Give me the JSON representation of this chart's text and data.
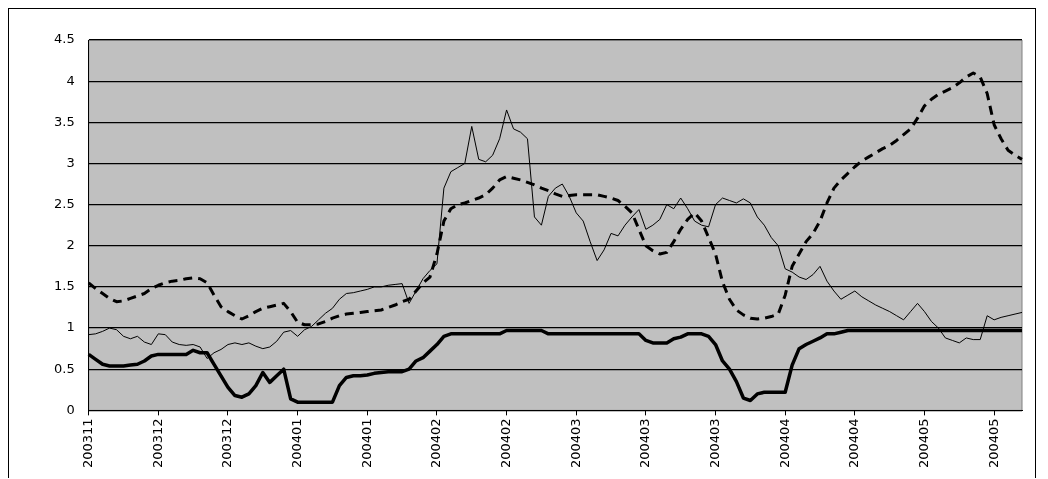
{
  "chart_data": {
    "type": "line",
    "categories": [
      "200311",
      null,
      null,
      null,
      null,
      null,
      null,
      null,
      null,
      null,
      "200312",
      null,
      null,
      null,
      null,
      null,
      null,
      null,
      null,
      null,
      "200312",
      null,
      null,
      null,
      null,
      null,
      null,
      null,
      null,
      null,
      "200401",
      null,
      null,
      null,
      null,
      null,
      null,
      null,
      null,
      null,
      "200401",
      null,
      null,
      null,
      null,
      null,
      null,
      null,
      null,
      null,
      "200402",
      null,
      null,
      null,
      null,
      null,
      null,
      null,
      null,
      null,
      "200402",
      null,
      null,
      null,
      null,
      null,
      null,
      null,
      null,
      null,
      "200403",
      null,
      null,
      null,
      null,
      null,
      null,
      null,
      null,
      null,
      "200403",
      null,
      null,
      null,
      null,
      null,
      null,
      null,
      null,
      null,
      "200403",
      null,
      null,
      null,
      null,
      null,
      null,
      null,
      null,
      null,
      "200404",
      null,
      null,
      null,
      null,
      null,
      null,
      null,
      null,
      null,
      "200404",
      null,
      null,
      null,
      null,
      null,
      null,
      null,
      null,
      null,
      "200405",
      null,
      null,
      null,
      null,
      null,
      null,
      null,
      null,
      null,
      "200405",
      null,
      null,
      null,
      null
    ],
    "series": [
      {
        "color": "#000000",
        "line_style": "solid",
        "values": [
          0.92,
          0.93,
          0.96,
          1.0,
          0.98,
          0.9,
          0.87,
          0.9,
          0.83,
          0.8,
          0.93,
          0.92,
          0.83,
          0.8,
          0.79,
          0.8,
          0.77,
          0.63,
          0.7,
          0.74,
          0.8,
          0.82,
          0.8,
          0.82,
          0.78,
          0.75,
          0.77,
          0.84,
          0.95,
          0.97,
          0.9,
          0.98,
          1.02,
          1.1,
          1.18,
          1.24,
          1.35,
          1.42,
          1.43,
          1.45,
          1.47,
          1.5,
          1.5,
          1.52,
          1.53,
          1.54,
          1.3,
          1.45,
          1.6,
          1.7,
          1.78,
          2.7,
          2.9,
          2.95,
          3.0,
          3.45,
          3.05,
          3.02,
          3.1,
          3.3,
          3.65,
          3.42,
          3.38,
          3.3,
          2.35,
          2.25,
          2.6,
          2.7,
          2.75,
          2.6,
          2.4,
          2.3,
          2.05,
          1.82,
          1.95,
          2.15,
          2.12,
          2.25,
          2.35,
          2.44,
          2.2,
          2.25,
          2.32,
          2.5,
          2.45,
          2.58,
          2.45,
          2.3,
          2.25,
          2.23,
          2.5,
          2.58,
          2.55,
          2.52,
          2.57,
          2.52,
          2.35,
          2.25,
          2.1,
          2.0,
          1.72,
          1.68,
          1.62,
          1.59,
          1.65,
          1.75,
          1.57,
          1.45,
          1.35,
          1.4,
          1.45,
          1.38,
          1.33,
          1.28,
          1.24,
          1.2,
          1.15,
          1.1,
          1.2,
          1.3,
          1.2,
          1.08,
          1.0,
          0.88,
          0.85,
          0.82,
          0.88,
          0.86,
          0.86,
          1.15,
          1.1,
          1.13,
          1.15,
          1.17,
          1.19
        ]
      },
      {
        "color": "#000000",
        "line_style": "dashed",
        "values": [
          1.55,
          1.48,
          1.42,
          1.36,
          1.32,
          1.33,
          1.36,
          1.39,
          1.42,
          1.48,
          1.52,
          1.55,
          1.57,
          1.58,
          1.6,
          1.61,
          1.6,
          1.55,
          1.4,
          1.26,
          1.2,
          1.15,
          1.11,
          1.15,
          1.2,
          1.24,
          1.26,
          1.28,
          1.3,
          1.2,
          1.07,
          1.04,
          1.04,
          1.05,
          1.08,
          1.12,
          1.15,
          1.17,
          1.18,
          1.19,
          1.2,
          1.21,
          1.22,
          1.25,
          1.28,
          1.32,
          1.35,
          1.45,
          1.55,
          1.62,
          1.9,
          2.3,
          2.45,
          2.5,
          2.52,
          2.55,
          2.58,
          2.62,
          2.7,
          2.8,
          2.84,
          2.82,
          2.8,
          2.77,
          2.74,
          2.7,
          2.67,
          2.63,
          2.6,
          2.61,
          2.62,
          2.62,
          2.62,
          2.62,
          2.6,
          2.58,
          2.55,
          2.48,
          2.4,
          2.2,
          2.0,
          1.94,
          1.9,
          1.92,
          2.05,
          2.2,
          2.32,
          2.4,
          2.3,
          2.1,
          1.9,
          1.56,
          1.35,
          1.22,
          1.16,
          1.12,
          1.11,
          1.12,
          1.14,
          1.17,
          1.4,
          1.75,
          1.9,
          2.05,
          2.15,
          2.3,
          2.52,
          2.7,
          2.8,
          2.88,
          2.96,
          3.03,
          3.08,
          3.13,
          3.18,
          3.22,
          3.28,
          3.35,
          3.42,
          3.55,
          3.7,
          3.78,
          3.84,
          3.88,
          3.92,
          3.98,
          4.05,
          4.1,
          4.05,
          3.85,
          3.47,
          3.3,
          3.16,
          3.1,
          3.05
        ]
      },
      {
        "color": "#000000",
        "line_style": "solid",
        "values": [
          0.68,
          0.62,
          0.56,
          0.54,
          0.54,
          0.54,
          0.55,
          0.56,
          0.6,
          0.66,
          0.68,
          0.68,
          0.68,
          0.68,
          0.68,
          0.73,
          0.7,
          0.7,
          0.56,
          0.42,
          0.28,
          0.18,
          0.16,
          0.2,
          0.3,
          0.46,
          0.34,
          0.42,
          0.5,
          0.14,
          0.1,
          0.1,
          0.1,
          0.1,
          0.1,
          0.1,
          0.3,
          0.4,
          0.42,
          0.42,
          0.43,
          0.45,
          0.46,
          0.47,
          0.47,
          0.47,
          0.5,
          0.6,
          0.64,
          0.72,
          0.8,
          0.9,
          0.93,
          0.93,
          0.93,
          0.93,
          0.93,
          0.93,
          0.93,
          0.93,
          0.97,
          0.97,
          0.97,
          0.97,
          0.97,
          0.97,
          0.93,
          0.93,
          0.93,
          0.93,
          0.93,
          0.93,
          0.93,
          0.93,
          0.93,
          0.93,
          0.93,
          0.93,
          0.93,
          0.93,
          0.85,
          0.82,
          0.82,
          0.82,
          0.87,
          0.89,
          0.93,
          0.93,
          0.93,
          0.9,
          0.8,
          0.6,
          0.5,
          0.35,
          0.15,
          0.12,
          0.2,
          0.22,
          0.22,
          0.22,
          0.22,
          0.55,
          0.75,
          0.8,
          0.84,
          0.88,
          0.93,
          0.93,
          0.95,
          0.97,
          0.97,
          0.97,
          0.97,
          0.97,
          0.97,
          0.97,
          0.97,
          0.97,
          0.97,
          0.97,
          0.97,
          0.97,
          0.97,
          0.97,
          0.97,
          0.97,
          0.97,
          0.97,
          0.97,
          0.97,
          0.97,
          0.97,
          0.97,
          0.97,
          0.97
        ]
      }
    ],
    "ylim": [
      0,
      4.5
    ],
    "yticks": [
      0,
      0.5,
      1,
      1.5,
      2,
      2.5,
      3,
      3.5,
      4,
      4.5
    ],
    "grid": "y",
    "marker": "none"
  }
}
